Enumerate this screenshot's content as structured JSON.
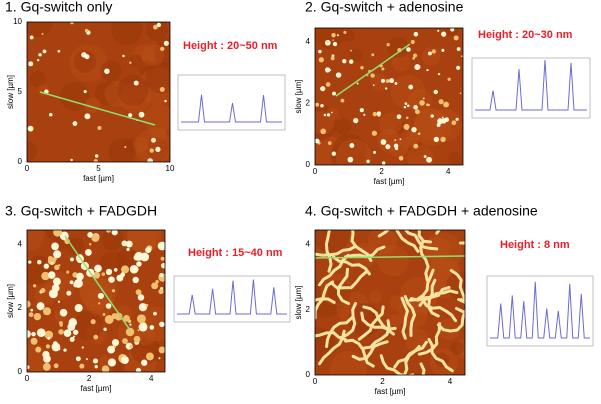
{
  "panels": [
    {
      "title": "1. Gq-switch only",
      "height_label": "Height : 20~50 nm",
      "x_label": "fast [µm]",
      "y_label": "slow [µm]",
      "x_ticks": [
        "0",
        "5",
        "10"
      ],
      "y_ticks": [
        "0",
        "5",
        "10"
      ]
    },
    {
      "title": "2. Gq-switch + adenosine",
      "height_label": "Height : 20~30 nm",
      "x_label": "fast [µm]",
      "y_label": "slow [µm]",
      "x_ticks": [
        "0",
        "2",
        "4"
      ],
      "y_ticks": [
        "0",
        "2",
        "4"
      ]
    },
    {
      "title": "3. Gq-switch + FADGDH",
      "height_label": "Height : 15~40 nm",
      "x_label": "fast [µm]",
      "y_label": "slow [µm]",
      "x_ticks": [
        "0",
        "2",
        "4"
      ],
      "y_ticks": [
        "0",
        "2",
        "4"
      ]
    },
    {
      "title": "4. Gq-switch + FADGDH + adenosine",
      "height_label": "Height : 8 nm",
      "x_label": "fast [µm]",
      "y_label": "slow [µm]",
      "x_ticks": [
        "0",
        "2",
        "4"
      ],
      "y_ticks": [
        "0",
        "2",
        "4"
      ]
    }
  ]
}
